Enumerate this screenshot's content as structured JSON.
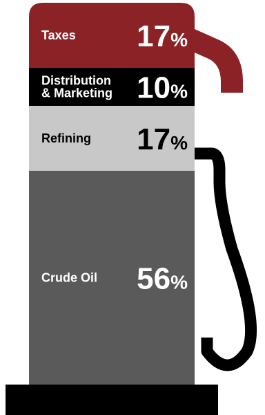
{
  "chart_data": {
    "type": "bar",
    "orientation": "stacked-vertical",
    "unit": "%",
    "categories": [
      "Taxes",
      "Distribution & Marketing",
      "Refining",
      "Crude Oil"
    ],
    "label_lines": [
      [
        "Taxes"
      ],
      [
        "Distribution",
        "& Marketing"
      ],
      [
        "Refining"
      ],
      [
        "Crude Oil"
      ]
    ],
    "values": [
      17,
      10,
      17,
      56
    ],
    "colors": [
      "#8b2326",
      "#000000",
      "#c8c8c8",
      "#5a5a5a"
    ],
    "text_colors": [
      "#ffffff",
      "#ffffff",
      "#000000",
      "#ffffff"
    ],
    "title": "",
    "legend": "none",
    "grid": false
  }
}
